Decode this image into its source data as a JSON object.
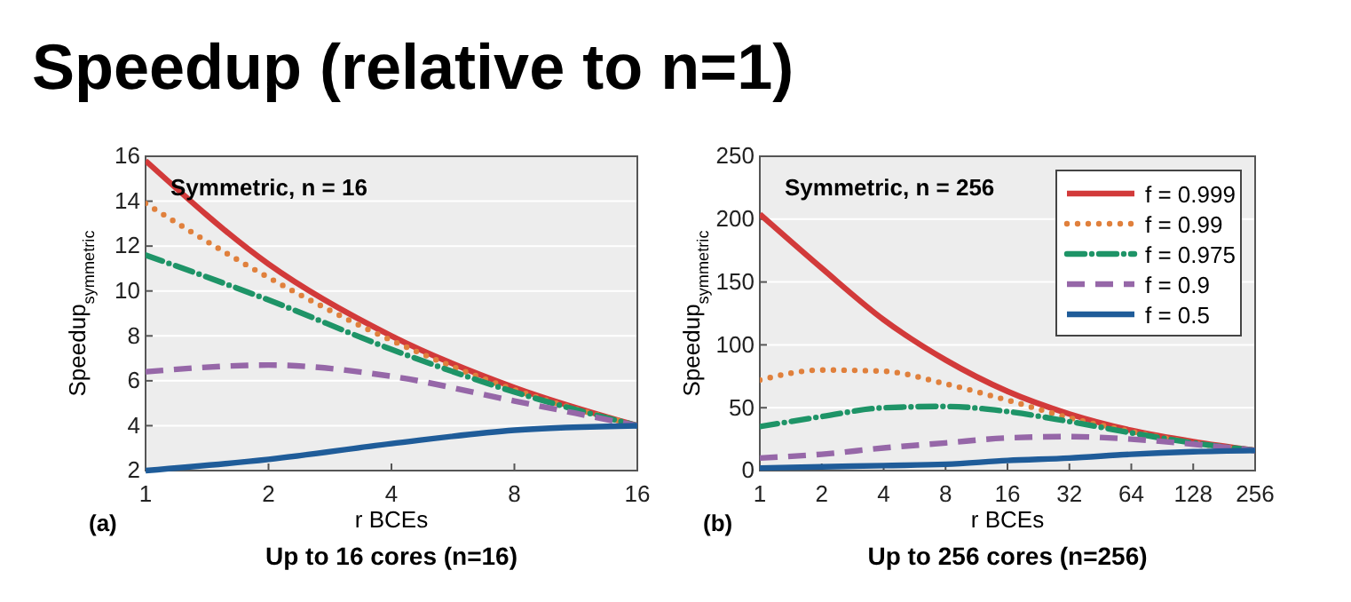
{
  "chart_data": [
    {
      "type": "line",
      "title": "Symmetric, n = 16",
      "xlabel": "r BCEs",
      "ylabel": "Speedup$_{symmetric}$",
      "log": "x",
      "xlim": [
        1,
        16
      ],
      "xticks": [
        1,
        2,
        4,
        8,
        16
      ],
      "ylim": [
        2,
        16
      ],
      "yticks": [
        2,
        4,
        6,
        8,
        10,
        12,
        14,
        16
      ],
      "grid": "y",
      "legend": false,
      "annotations": [
        "Speedup (relative to n=1)",
        "(a)",
        "Up to 16 cores (n=16)"
      ],
      "x": [
        1,
        2,
        4,
        8,
        16
      ],
      "series": [
        {
          "color": "#d23a3a",
          "line_style": "solid",
          "values": [
            15.8,
            11.2,
            8.0,
            5.7,
            4.0
          ]
        },
        {
          "color": "#e0803c",
          "line_style": "dotted",
          "values": [
            13.9,
            10.6,
            7.8,
            5.6,
            4.0
          ]
        },
        {
          "color": "#1e9467",
          "line_style": "dashdot",
          "values": [
            11.6,
            9.6,
            7.4,
            5.5,
            4.0
          ]
        },
        {
          "color": "#9667a8",
          "line_style": "dashed",
          "values": [
            6.4,
            6.7,
            6.2,
            5.1,
            4.0
          ]
        },
        {
          "color": "#1f5c99",
          "line_style": "solid",
          "values": [
            2.0,
            2.5,
            3.2,
            3.8,
            4.0
          ]
        }
      ]
    },
    {
      "type": "line",
      "title": "Symmetric, n = 256",
      "xlabel": "r BCEs",
      "ylabel": "Speedup$_{symmetric}$",
      "log": "x",
      "xlim": [
        1,
        256
      ],
      "xticks": [
        1,
        2,
        4,
        8,
        16,
        32,
        64,
        128,
        256
      ],
      "ylim": [
        0,
        250
      ],
      "yticks": [
        0,
        50,
        100,
        150,
        200,
        250
      ],
      "grid": "y",
      "legend": "top right",
      "annotations": [
        "(b)",
        "Up to 256 cores (n=256)"
      ],
      "x": [
        1,
        2,
        4,
        8,
        16,
        32,
        64,
        128,
        256
      ],
      "series": [
        {
          "name": "f = 0.999",
          "color": "#d23a3a",
          "line_style": "solid",
          "values": [
            204,
            161,
            120,
            88,
            63,
            45,
            32,
            23,
            16
          ]
        },
        {
          "name": "f = 0.99",
          "color": "#e0803c",
          "line_style": "dotted",
          "values": [
            72,
            80,
            79,
            69,
            56,
            42,
            31,
            22,
            16
          ]
        },
        {
          "name": "f = 0.975",
          "color": "#1e9467",
          "line_style": "dashdot",
          "values": [
            35,
            43,
            50,
            51,
            47,
            39,
            30,
            22,
            16
          ]
        },
        {
          "name": "f = 0.9",
          "color": "#9667a8",
          "line_style": "dashed",
          "values": [
            10,
            13,
            18,
            22,
            26,
            27,
            25,
            21,
            16
          ]
        },
        {
          "name": "f = 0.5",
          "color": "#1f5c99",
          "line_style": "solid",
          "values": [
            2,
            3,
            4,
            5,
            8,
            10,
            13,
            15,
            16
          ]
        }
      ]
    }
  ]
}
